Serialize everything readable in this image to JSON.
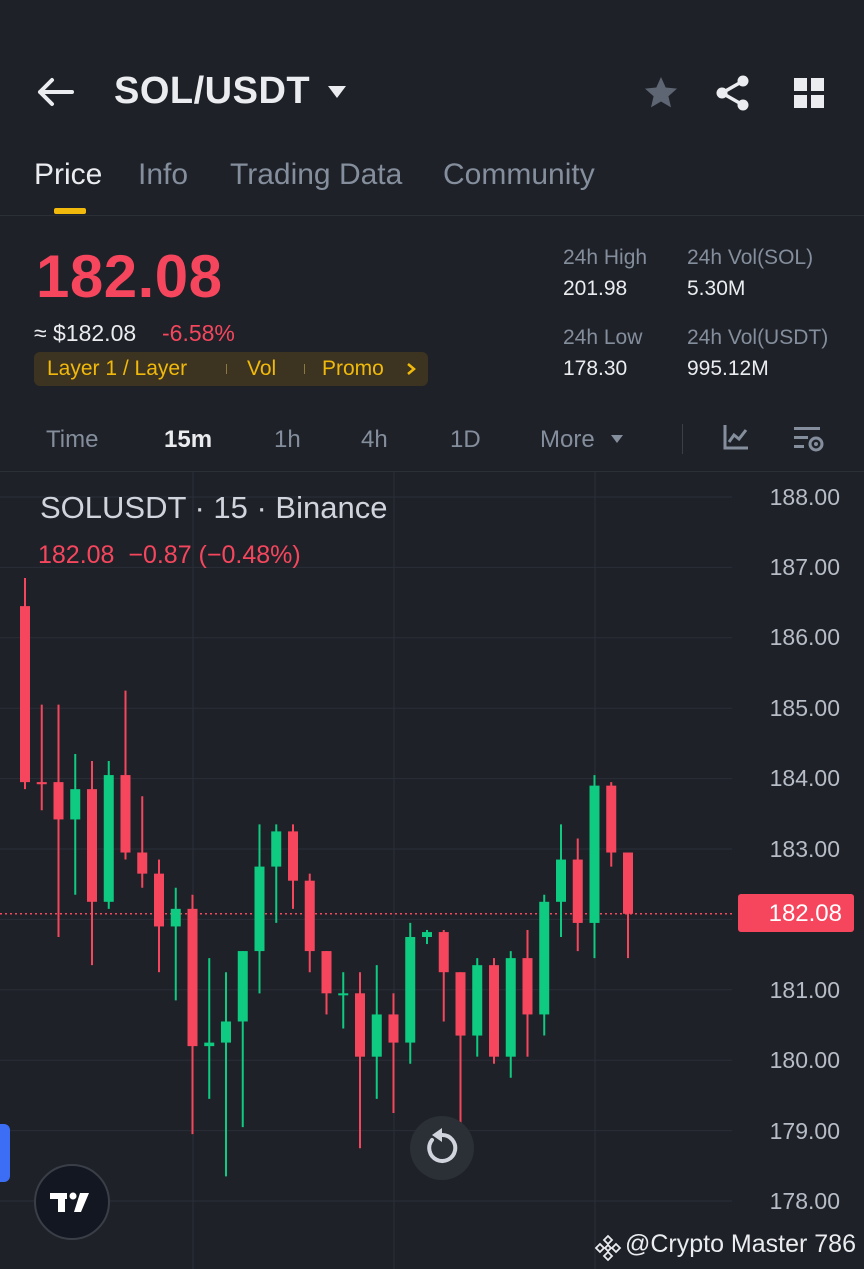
{
  "header": {
    "pair": "SOL/USDT",
    "icons": [
      "back-arrow-icon",
      "caret-down-icon",
      "star-icon",
      "share-icon",
      "grid-menu-icon"
    ]
  },
  "tabs": [
    {
      "label": "Price",
      "active": true
    },
    {
      "label": "Info",
      "active": false
    },
    {
      "label": "Trading Data",
      "active": false
    },
    {
      "label": "Community",
      "active": false
    }
  ],
  "ticker": {
    "last_price": "182.08",
    "fiat_price": "≈ $182.08",
    "change_pct": "-6.58%",
    "tags": [
      "Layer 1 / Layer",
      "Vol",
      "Promo"
    ],
    "high_label": "24h High",
    "high_value": "201.98",
    "low_label": "24h Low",
    "low_value": "178.30",
    "vol_base_label": "24h Vol(SOL)",
    "vol_base_value": "5.30M",
    "vol_quote_label": "24h Vol(USDT)",
    "vol_quote_value": "995.12M"
  },
  "intervals": {
    "items": [
      "Time",
      "15m",
      "1h",
      "4h",
      "1D",
      "More"
    ],
    "active": "15m"
  },
  "chart": {
    "title": "SOLUSDT · 15 · Binance",
    "ohlc_line": "182.08  −0.87 (−0.48%)",
    "current_price_tag": "182.08",
    "up_color": "#0ecb81",
    "down_color": "#f6465d"
  },
  "chart_data": {
    "type": "candlestick",
    "y_ticks": [
      "188.00",
      "187.00",
      "186.00",
      "185.00",
      "184.00",
      "183.00",
      "182.00",
      "181.00",
      "180.00",
      "179.00",
      "178.00"
    ],
    "ylim": [
      177.6,
      188.0
    ],
    "current_price": 182.08,
    "grid": true,
    "candles": [
      {
        "o": 186.45,
        "h": 186.85,
        "l": 183.85,
        "c": 183.95
      },
      {
        "o": 183.95,
        "h": 185.05,
        "l": 183.55,
        "c": 183.92
      },
      {
        "o": 183.95,
        "h": 185.05,
        "l": 181.75,
        "c": 183.42
      },
      {
        "o": 183.42,
        "h": 184.35,
        "l": 182.35,
        "c": 183.85
      },
      {
        "o": 183.85,
        "h": 184.25,
        "l": 181.35,
        "c": 182.25
      },
      {
        "o": 182.25,
        "h": 184.25,
        "l": 182.15,
        "c": 184.05
      },
      {
        "o": 184.05,
        "h": 185.25,
        "l": 182.85,
        "c": 182.95
      },
      {
        "o": 182.95,
        "h": 183.75,
        "l": 182.45,
        "c": 182.65
      },
      {
        "o": 182.65,
        "h": 182.85,
        "l": 181.25,
        "c": 181.9
      },
      {
        "o": 181.9,
        "h": 182.45,
        "l": 180.85,
        "c": 182.15
      },
      {
        "o": 182.15,
        "h": 182.35,
        "l": 178.95,
        "c": 180.2
      },
      {
        "o": 180.2,
        "h": 181.45,
        "l": 179.45,
        "c": 180.25
      },
      {
        "o": 180.25,
        "h": 181.25,
        "l": 178.35,
        "c": 180.55
      },
      {
        "o": 180.55,
        "h": 181.55,
        "l": 179.05,
        "c": 181.55
      },
      {
        "o": 181.55,
        "h": 183.35,
        "l": 180.95,
        "c": 182.75
      },
      {
        "o": 182.75,
        "h": 183.35,
        "l": 181.95,
        "c": 183.25
      },
      {
        "o": 183.25,
        "h": 183.35,
        "l": 182.15,
        "c": 182.55
      },
      {
        "o": 182.55,
        "h": 182.65,
        "l": 181.25,
        "c": 181.55
      },
      {
        "o": 181.55,
        "h": 181.55,
        "l": 180.65,
        "c": 180.95
      },
      {
        "o": 180.95,
        "h": 181.25,
        "l": 180.45,
        "c": 180.95
      },
      {
        "o": 180.95,
        "h": 181.25,
        "l": 178.75,
        "c": 180.05
      },
      {
        "o": 180.05,
        "h": 181.35,
        "l": 179.45,
        "c": 180.65
      },
      {
        "o": 180.65,
        "h": 180.95,
        "l": 179.25,
        "c": 180.25
      },
      {
        "o": 180.25,
        "h": 181.95,
        "l": 179.95,
        "c": 181.75
      },
      {
        "o": 181.75,
        "h": 181.85,
        "l": 181.65,
        "c": 181.82
      },
      {
        "o": 181.82,
        "h": 181.85,
        "l": 180.55,
        "c": 181.25
      },
      {
        "o": 181.25,
        "h": 181.25,
        "l": 179.05,
        "c": 180.35
      },
      {
        "o": 180.35,
        "h": 181.45,
        "l": 180.05,
        "c": 181.35
      },
      {
        "o": 181.35,
        "h": 181.45,
        "l": 179.95,
        "c": 180.05
      },
      {
        "o": 180.05,
        "h": 181.55,
        "l": 179.75,
        "c": 181.45
      },
      {
        "o": 181.45,
        "h": 181.85,
        "l": 180.05,
        "c": 180.65
      },
      {
        "o": 180.65,
        "h": 182.35,
        "l": 180.35,
        "c": 182.25
      },
      {
        "o": 182.25,
        "h": 183.35,
        "l": 181.75,
        "c": 182.85
      },
      {
        "o": 182.85,
        "h": 183.15,
        "l": 181.55,
        "c": 181.95
      },
      {
        "o": 181.95,
        "h": 184.05,
        "l": 181.45,
        "c": 183.9
      },
      {
        "o": 183.9,
        "h": 183.95,
        "l": 182.75,
        "c": 182.95
      },
      {
        "o": 182.95,
        "h": 182.95,
        "l": 181.45,
        "c": 182.08
      }
    ]
  },
  "watermark": "@Crypto Master 786"
}
